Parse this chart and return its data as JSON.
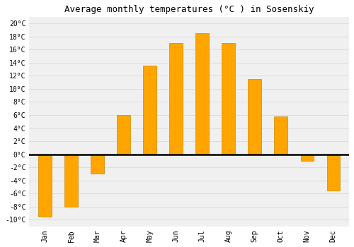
{
  "title": "Average monthly temperatures (°C ) in Sosenskiy",
  "months": [
    "Jan",
    "Feb",
    "Mar",
    "Apr",
    "May",
    "Jun",
    "Jul",
    "Aug",
    "Sep",
    "Oct",
    "Nov",
    "Dec"
  ],
  "values": [
    -9.5,
    -8.0,
    -3.0,
    6.0,
    13.5,
    17.0,
    18.5,
    17.0,
    11.5,
    5.8,
    -1.0,
    -5.5
  ],
  "bar_color": "#FFA500",
  "bar_edge_color": "#CC8800",
  "ylim": [
    -11,
    21
  ],
  "yticks": [
    -10,
    -8,
    -6,
    -4,
    -2,
    0,
    2,
    4,
    6,
    8,
    10,
    12,
    14,
    16,
    18,
    20
  ],
  "ytick_labels": [
    "-10°C",
    "-8°C",
    "-6°C",
    "-4°C",
    "-2°C",
    "0°C",
    "2°C",
    "4°C",
    "6°C",
    "8°C",
    "10°C",
    "12°C",
    "14°C",
    "16°C",
    "18°C",
    "20°C"
  ],
  "background_color": "#ffffff",
  "plot_bg_color": "#f0f0f0",
  "grid_color": "#dddddd",
  "title_fontsize": 9,
  "tick_fontsize": 7,
  "bar_width": 0.5
}
